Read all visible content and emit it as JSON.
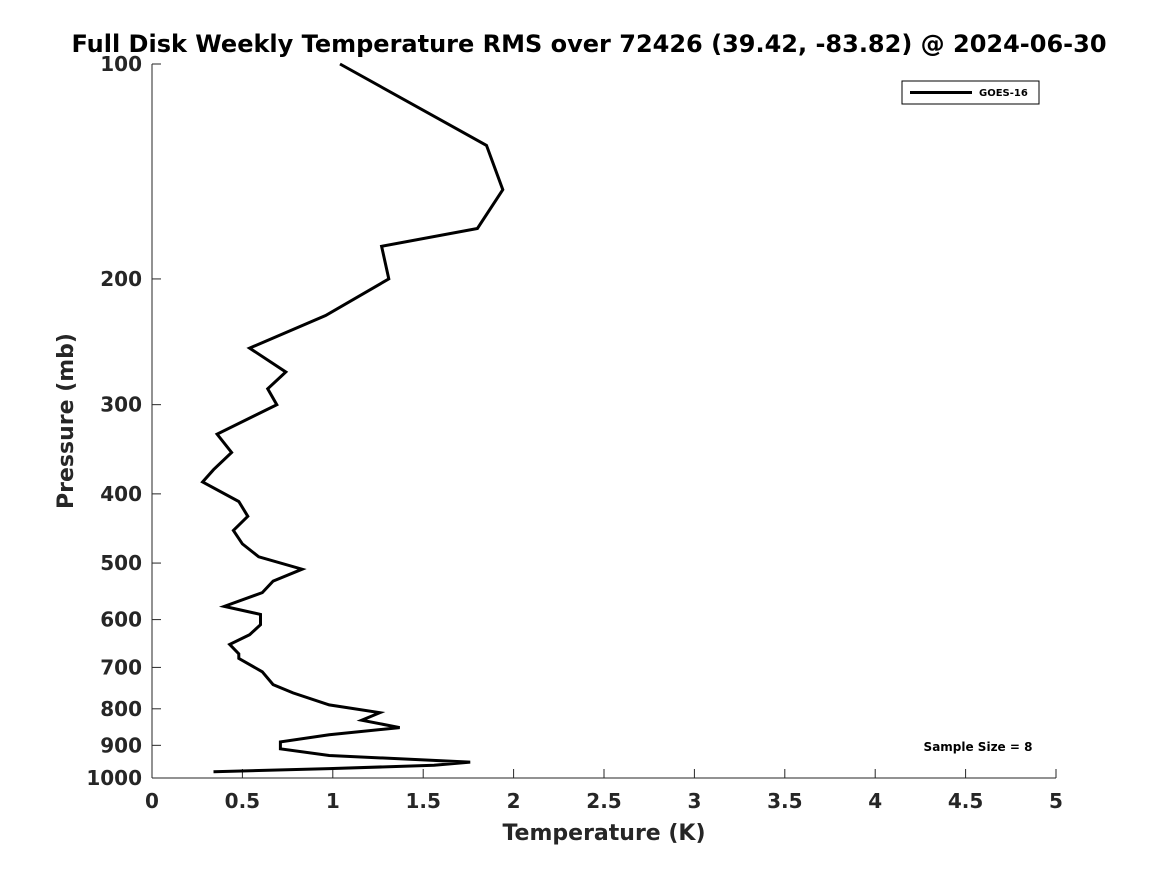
{
  "chart_data": {
    "type": "line",
    "title": "Full Disk Weekly Temperature RMS over 72426 (39.42, -83.82) @ 2024-06-30",
    "xlabel": "Temperature (K)",
    "ylabel": "Pressure (mb)",
    "xlim": [
      0,
      5
    ],
    "ylim": [
      100,
      1000
    ],
    "y_scale": "log",
    "y_reversed": true,
    "x_ticks": [
      "0",
      "0.5",
      "1",
      "1.5",
      "2",
      "2.5",
      "3",
      "3.5",
      "4",
      "4.5",
      "5"
    ],
    "y_ticks": [
      "100",
      "200",
      "300",
      "400",
      "500",
      "600",
      "700",
      "800",
      "900",
      "1000"
    ],
    "grid": false,
    "legend_position": "top-right",
    "annotation": "Sample Size = 8",
    "series": [
      {
        "name": "GOES-16",
        "color": "#000000",
        "points": [
          [
            1.04,
            100
          ],
          [
            1.85,
            130
          ],
          [
            1.94,
            150
          ],
          [
            1.8,
            170
          ],
          [
            1.27,
            180
          ],
          [
            1.31,
            200
          ],
          [
            0.96,
            225
          ],
          [
            0.54,
            250
          ],
          [
            0.74,
            270
          ],
          [
            0.64,
            285
          ],
          [
            0.69,
            300
          ],
          [
            0.36,
            330
          ],
          [
            0.44,
            350
          ],
          [
            0.34,
            370
          ],
          [
            0.28,
            385
          ],
          [
            0.48,
            410
          ],
          [
            0.53,
            430
          ],
          [
            0.45,
            450
          ],
          [
            0.5,
            470
          ],
          [
            0.59,
            490
          ],
          [
            0.83,
            510
          ],
          [
            0.67,
            530
          ],
          [
            0.61,
            550
          ],
          [
            0.4,
            575
          ],
          [
            0.6,
            590
          ],
          [
            0.6,
            610
          ],
          [
            0.54,
            630
          ],
          [
            0.43,
            650
          ],
          [
            0.48,
            670
          ],
          [
            0.48,
            680
          ],
          [
            0.61,
            710
          ],
          [
            0.67,
            740
          ],
          [
            0.78,
            760
          ],
          [
            0.98,
            790
          ],
          [
            1.26,
            810
          ],
          [
            1.16,
            830
          ],
          [
            1.37,
            850
          ],
          [
            0.98,
            870
          ],
          [
            0.71,
            890
          ],
          [
            0.71,
            910
          ],
          [
            0.98,
            930
          ],
          [
            1.76,
            950
          ],
          [
            1.56,
            960
          ],
          [
            0.98,
            970
          ],
          [
            0.34,
            980
          ]
        ]
      }
    ]
  }
}
